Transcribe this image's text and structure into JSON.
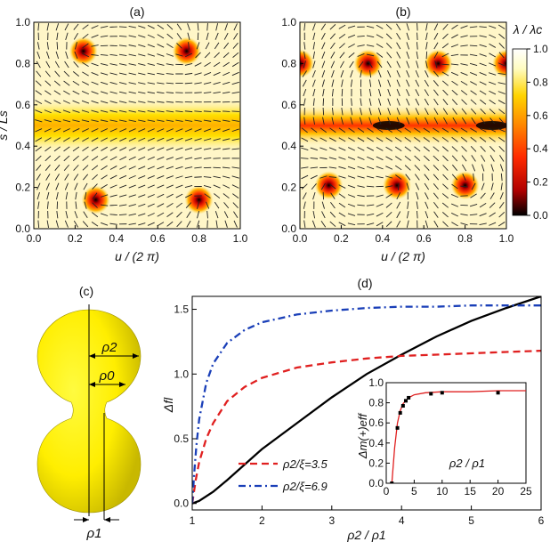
{
  "chart_data": [
    {
      "id": "a",
      "type": "heatmap",
      "panel_label": "(a)",
      "xlabel": "u / (2 π)",
      "ylabel": "s / Ls",
      "xlim": [
        0,
        1
      ],
      "ylim": [
        0,
        1
      ],
      "xticks": [
        "0.0",
        "0.2",
        "0.4",
        "0.6",
        "0.8",
        "1.0"
      ],
      "yticks": [
        "0.0",
        "0.2",
        "0.4",
        "0.6",
        "0.8",
        "1.0"
      ],
      "defects": [
        {
          "u": 0.24,
          "s": 0.86
        },
        {
          "u": 0.74,
          "s": 0.86
        },
        {
          "u": 0.3,
          "s": 0.14
        },
        {
          "u": 0.8,
          "s": 0.14
        }
      ],
      "band": {
        "s": 0.5,
        "min_value": 0.55
      }
    },
    {
      "id": "b",
      "type": "heatmap",
      "panel_label": "(b)",
      "xlabel": "u / (2 π)",
      "ylabel": "",
      "xlim": [
        0,
        1
      ],
      "ylim": [
        0,
        1
      ],
      "xticks": [
        "0.0",
        "0.2",
        "0.4",
        "0.6",
        "0.8",
        "1.0"
      ],
      "yticks": [
        "0.0",
        "0.2",
        "0.4",
        "0.6",
        "0.8",
        "1.0"
      ],
      "defects": [
        {
          "u": 0.0,
          "s": 0.8
        },
        {
          "u": 0.33,
          "s": 0.8
        },
        {
          "u": 0.67,
          "s": 0.8
        },
        {
          "u": 1.0,
          "s": 0.8
        },
        {
          "u": 0.14,
          "s": 0.21
        },
        {
          "u": 0.47,
          "s": 0.21
        },
        {
          "u": 0.8,
          "s": 0.21
        }
      ],
      "line_defects": [
        {
          "u": 0.43,
          "s": 0.5
        },
        {
          "u": 0.93,
          "s": 0.5
        }
      ],
      "band": {
        "s": 0.5,
        "min_value": 0.15
      },
      "colorbar": {
        "label": "λ / λc",
        "ticks": [
          "0.0",
          "0.2",
          "0.4",
          "0.6",
          "0.8",
          "1.0"
        ],
        "range": [
          0,
          1
        ],
        "colors": [
          "#000000",
          "#b00000",
          "#ff2a00",
          "#ff8a00",
          "#ffe000",
          "#ffffe0",
          "#ffffff"
        ]
      }
    },
    {
      "id": "d",
      "type": "line",
      "panel_label": "(d)",
      "xlabel": "ρ2 / ρ1",
      "ylabel": "Δfl",
      "xlim": [
        1,
        6
      ],
      "ylim": [
        -0.05,
        1.6
      ],
      "xticks": [
        "1",
        "2",
        "3",
        "4",
        "5",
        "6"
      ],
      "yticks": [
        "0.0",
        "0.5",
        "1.0",
        "1.5"
      ],
      "series": [
        {
          "name": "",
          "style": "solid",
          "color": "#000000",
          "x": [
            1.0,
            1.1,
            1.3,
            1.5,
            2.0,
            2.5,
            3.0,
            3.5,
            4.0,
            4.5,
            5.0,
            5.5,
            6.0
          ],
          "y": [
            0.0,
            0.02,
            0.09,
            0.18,
            0.42,
            0.62,
            0.82,
            1.0,
            1.15,
            1.29,
            1.41,
            1.51,
            1.6
          ]
        },
        {
          "name": "ρ2/ξ=3.5",
          "style": "dashed",
          "color": "#e02020",
          "x": [
            1.0,
            1.05,
            1.1,
            1.2,
            1.3,
            1.5,
            1.75,
            2.0,
            2.5,
            3.0,
            3.5,
            4.0,
            4.5,
            5.0,
            5.5,
            6.0
          ],
          "y": [
            0.0,
            0.18,
            0.32,
            0.5,
            0.62,
            0.79,
            0.9,
            0.97,
            1.05,
            1.09,
            1.12,
            1.14,
            1.15,
            1.16,
            1.17,
            1.18
          ]
        },
        {
          "name": "ρ2/ξ=6.9",
          "style": "dashdot",
          "color": "#1a3fb8",
          "x": [
            1.0,
            1.03,
            1.06,
            1.1,
            1.2,
            1.3,
            1.5,
            1.75,
            2.0,
            2.5,
            3.0,
            3.5,
            4.0,
            4.5,
            5.0,
            5.5,
            6.0
          ],
          "y": [
            0.0,
            0.25,
            0.45,
            0.65,
            0.93,
            1.08,
            1.24,
            1.34,
            1.4,
            1.46,
            1.49,
            1.51,
            1.52,
            1.52,
            1.53,
            1.53,
            1.53
          ]
        }
      ]
    },
    {
      "id": "d-inset",
      "type": "scatter",
      "xlabel": "ρ2 / ρ1",
      "ylabel": "Δm(+)eff",
      "xlim": [
        0,
        25
      ],
      "ylim": [
        0,
        1.0
      ],
      "xticks": [
        "0",
        "5",
        "10",
        "15",
        "20",
        "25"
      ],
      "yticks": [
        "0.0",
        "0.2",
        "0.4",
        "0.6",
        "0.8",
        "1.0"
      ],
      "points": {
        "x": [
          1,
          2,
          2.5,
          3,
          3.5,
          4,
          8,
          10,
          20
        ],
        "y": [
          0.0,
          0.55,
          0.7,
          0.77,
          0.82,
          0.85,
          0.89,
          0.9,
          0.9
        ]
      },
      "fit": {
        "color": "#e02020",
        "x": [
          1,
          1.5,
          2,
          2.5,
          3,
          4,
          5,
          7,
          10,
          15,
          20,
          25
        ],
        "y": [
          0.0,
          0.35,
          0.6,
          0.72,
          0.79,
          0.85,
          0.88,
          0.9,
          0.91,
          0.91,
          0.92,
          0.92
        ]
      }
    }
  ],
  "panel_c": {
    "label": "(c)",
    "rho2": "ρ2",
    "rho0": "ρ0",
    "rho1": "ρ1",
    "surface_color": "#ffee00"
  }
}
